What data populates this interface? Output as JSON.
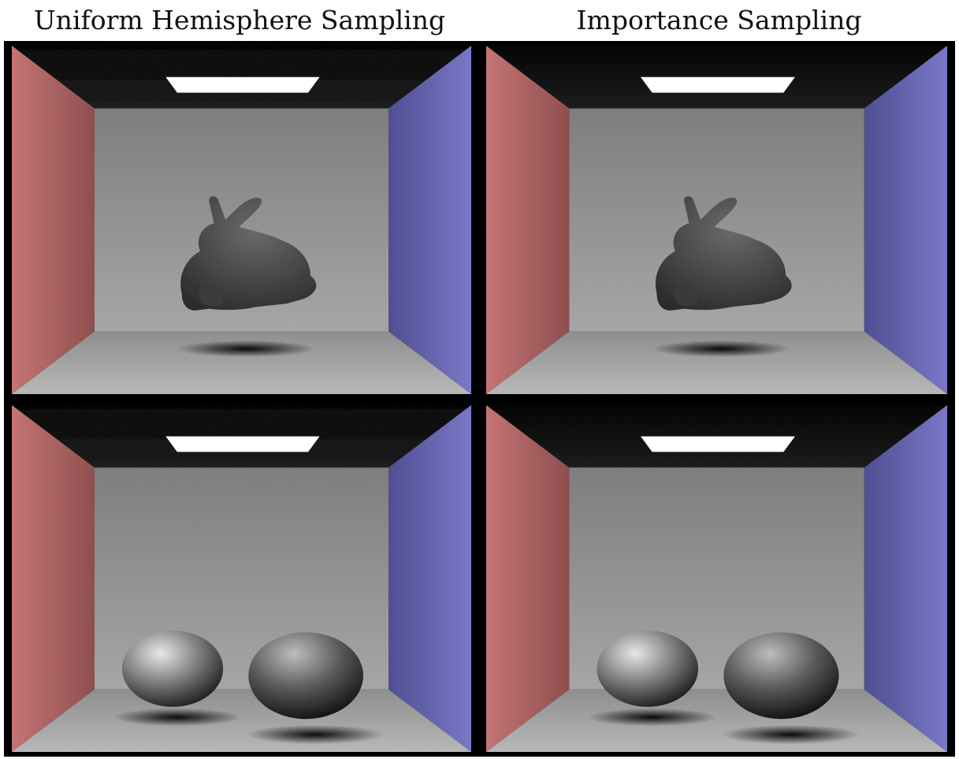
{
  "titles": {
    "left": "Uniform Hemisphere Sampling",
    "right": "Importance Sampling"
  },
  "panels": [
    {
      "scene": "bunny",
      "method": "uniform"
    },
    {
      "scene": "bunny",
      "method": "importance"
    },
    {
      "scene": "spheres",
      "method": "uniform"
    },
    {
      "scene": "spheres",
      "method": "importance"
    }
  ],
  "colors": {
    "left_wall": "#b86a6a",
    "right_wall": "#6a6ab8",
    "back_wall": "#9c9c9c",
    "floor": "#a8a8a8",
    "ceiling": "#111111",
    "light": "#ffffff"
  }
}
